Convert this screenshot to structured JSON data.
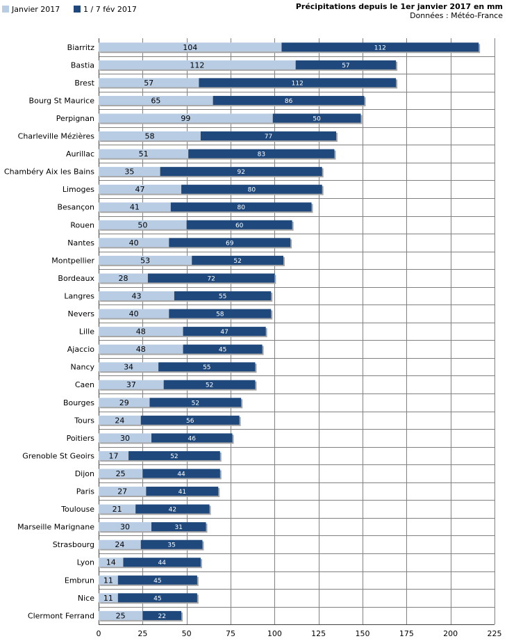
{
  "chart_data": {
    "type": "bar",
    "orientation": "horizontal",
    "stacked": true,
    "title": "Précipitations depuis le 1er janvier 2017 en mm",
    "subtitle": "Données : Météo-France",
    "xlim": [
      0,
      225
    ],
    "xticks": [
      0,
      25,
      50,
      75,
      100,
      125,
      150,
      175,
      200,
      225
    ],
    "grid": true,
    "legend_position": "top-left",
    "categories": [
      "Biarritz",
      "Bastia",
      "Brest",
      "Bourg St Maurice",
      "Perpignan",
      "Charleville Mézières",
      "Aurillac",
      "Chambéry Aix les Bains",
      "Limoges",
      "Besançon",
      "Rouen",
      "Nantes",
      "Montpellier",
      "Bordeaux",
      "Langres",
      "Nevers",
      "Lille",
      "Ajaccio",
      "Nancy",
      "Caen",
      "Bourges",
      "Tours",
      "Poitiers",
      "Grenoble St Geoirs",
      "Dijon",
      "Paris",
      "Toulouse",
      "Marseille Marignane",
      "Strasbourg",
      "Lyon",
      "Embrun",
      "Nice",
      "Clermont Ferrand"
    ],
    "series": [
      {
        "name": "Janvier 2017",
        "color": "#b8cce4",
        "values": [
          104,
          112,
          57,
          65,
          99,
          58,
          51,
          35,
          47,
          41,
          50,
          40,
          53,
          28,
          43,
          40,
          48,
          48,
          34,
          37,
          29,
          24,
          30,
          17,
          25,
          27,
          21,
          30,
          24,
          14,
          11,
          11,
          25
        ]
      },
      {
        "name": "1 / 7 fév 2017",
        "color": "#1f497d",
        "values": [
          112,
          57,
          112,
          86,
          50,
          77,
          83,
          92,
          80,
          80,
          60,
          69,
          52,
          72,
          55,
          58,
          47,
          45,
          55,
          52,
          52,
          56,
          46,
          52,
          44,
          41,
          42,
          31,
          35,
          44,
          45,
          45,
          22
        ]
      }
    ]
  }
}
